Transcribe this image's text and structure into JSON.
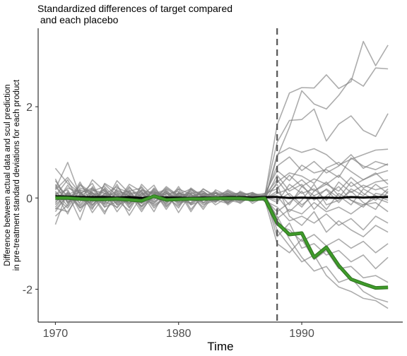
{
  "chart_data": {
    "type": "line",
    "title": "Standardized differences of target compared\n and each placebo",
    "xlabel": "Time",
    "ylabel_lines": [
      "Difference between actual data and scul prediction",
      "in pre-treatment standard deviations for each product"
    ],
    "xlim": [
      1968.6,
      1998.2
    ],
    "ylim": [
      -2.72,
      3.72
    ],
    "x_ticks": [
      1970,
      1980,
      1990
    ],
    "y_ticks": [
      -2,
      0,
      2
    ],
    "treatment_x": 1988,
    "grid": false,
    "placebo_color": "#7f7f7f",
    "target_color": "#3f9a2a",
    "mean_color": "#000000",
    "x": [
      1970,
      1971,
      1972,
      1973,
      1974,
      1975,
      1976,
      1977,
      1978,
      1979,
      1980,
      1981,
      1982,
      1983,
      1984,
      1985,
      1986,
      1987,
      1988,
      1989,
      1990,
      1991,
      1992,
      1993,
      1994,
      1995,
      1996,
      1997
    ],
    "target_series": {
      "values": [
        0.0,
        0.0,
        -0.02,
        -0.03,
        -0.03,
        -0.02,
        -0.04,
        -0.06,
        0.04,
        -0.04,
        -0.03,
        -0.02,
        -0.02,
        -0.01,
        -0.01,
        -0.01,
        -0.03,
        -0.01,
        -0.55,
        -0.8,
        -0.77,
        -1.3,
        -1.08,
        -1.48,
        -1.78,
        -1.88,
        -1.97,
        -1.96
      ]
    },
    "mean_series": {
      "values": [
        0.04,
        0.03,
        0.02,
        0.02,
        0.02,
        0.01,
        0.02,
        0.0,
        0.03,
        0.01,
        0.01,
        0.0,
        0.01,
        0.01,
        0.02,
        0.02,
        0.01,
        0.02,
        0.02,
        0.0,
        0.01,
        0.0,
        0.01,
        0.0,
        0.02,
        0.01,
        0.02,
        0.02
      ]
    },
    "placebo_series": [
      {
        "values": [
          0.65,
          0.32,
          0.1,
          0.22,
          -0.05,
          0.18,
          0.05,
          -0.12,
          0.08,
          0.15,
          -0.04,
          0.12,
          -0.02,
          0.05,
          0.1,
          -0.03,
          0.06,
          0.04,
          1.6,
          2.3,
          2.42,
          2.41,
          2.7,
          2.4,
          2.55,
          3.43,
          2.9,
          3.35
        ]
      },
      {
        "values": [
          -0.58,
          0.15,
          -0.22,
          0.05,
          0.18,
          -0.1,
          0.22,
          0.02,
          -0.08,
          0.1,
          -0.05,
          0.02,
          0.12,
          -0.04,
          0.03,
          0.08,
          -0.02,
          -0.05,
          0.9,
          1.55,
          2.35,
          2.06,
          1.95,
          2.25,
          2.62,
          2.45,
          2.85,
          2.83
        ]
      },
      {
        "values": [
          0.42,
          -0.12,
          0.35,
          -0.15,
          0.1,
          -0.05,
          -0.28,
          0.18,
          -0.02,
          0.22,
          0.05,
          -0.12,
          0.1,
          0.04,
          -0.06,
          0.12,
          0.03,
          0.05,
          1.22,
          1.7,
          1.72,
          1.95,
          1.25,
          1.62,
          1.8,
          1.48,
          1.35,
          1.85
        ]
      },
      {
        "values": [
          0.2,
          0.78,
          0.05,
          -0.25,
          0.32,
          0.15,
          -0.12,
          0.05,
          0.28,
          -0.18,
          0.08,
          0.2,
          -0.1,
          0.05,
          0.15,
          -0.03,
          0.08,
          -0.04,
          0.95,
          1.1,
          1.0,
          1.08,
          0.95,
          0.72,
          0.85,
          0.95,
          1.05,
          1.07
        ]
      },
      {
        "values": [
          -0.2,
          0.1,
          -0.48,
          0.25,
          -0.12,
          0.38,
          0.1,
          -0.3,
          0.12,
          0.05,
          -0.22,
          0.18,
          0.02,
          -0.08,
          0.12,
          0.05,
          -0.05,
          0.1,
          0.6,
          0.38,
          0.72,
          0.55,
          0.62,
          0.45,
          0.88,
          0.7,
          0.62,
          0.75
        ]
      },
      {
        "values": [
          0.1,
          -0.35,
          0.22,
          0.12,
          -0.2,
          -0.08,
          0.3,
          0.14,
          -0.18,
          0.02,
          0.2,
          -0.25,
          0.06,
          0.12,
          -0.1,
          0.02,
          0.12,
          -0.08,
          0.35,
          0.55,
          0.48,
          0.32,
          0.66,
          0.78,
          0.58,
          0.4,
          0.52,
          0.6
        ]
      },
      {
        "values": [
          0.3,
          0.05,
          -0.1,
          0.4,
          0.15,
          -0.3,
          0.05,
          -0.18,
          0.2,
          -0.1,
          0.1,
          0.05,
          -0.2,
          0.18,
          0.05,
          -0.12,
          0.06,
          0.1,
          0.2,
          0.5,
          0.25,
          0.42,
          0.3,
          0.15,
          0.45,
          0.22,
          0.35,
          0.4
        ]
      },
      {
        "values": [
          -0.05,
          0.22,
          0.12,
          -0.18,
          0.3,
          0.05,
          -0.15,
          0.25,
          -0.1,
          0.15,
          -0.32,
          0.1,
          0.15,
          -0.06,
          0.08,
          0.1,
          -0.12,
          0.03,
          -0.1,
          0.3,
          0.1,
          0.2,
          -0.05,
          0.35,
          0.12,
          0.28,
          0.18,
          0.25
        ]
      },
      {
        "values": [
          0.15,
          -0.18,
          0.28,
          0.05,
          -0.35,
          0.22,
          0.12,
          -0.05,
          0.15,
          -0.25,
          0.12,
          -0.05,
          0.2,
          0.05,
          -0.12,
          0.15,
          0.02,
          -0.02,
          0.15,
          -0.15,
          0.25,
          0.05,
          0.18,
          -0.1,
          0.2,
          0.05,
          0.3,
          0.1
        ]
      },
      {
        "values": [
          -0.3,
          0.08,
          0.18,
          -0.32,
          0.05,
          0.12,
          -0.22,
          0.3,
          0.02,
          -0.12,
          0.25,
          -0.15,
          0.05,
          0.1,
          -0.05,
          -0.1,
          0.1,
          0.05,
          0.4,
          0.05,
          -0.2,
          0.15,
          0.35,
          0.05,
          -0.15,
          0.2,
          0.05,
          -0.05
        ]
      },
      {
        "values": [
          0.05,
          0.4,
          -0.15,
          0.18,
          0.1,
          -0.22,
          0.08,
          0.12,
          -0.3,
          0.2,
          0.02,
          0.15,
          -0.12,
          -0.02,
          0.18,
          0.05,
          -0.06,
          -0.03,
          -0.3,
          -0.1,
          0.15,
          -0.25,
          0.05,
          0.25,
          -0.05,
          -0.2,
          0.1,
          0.05
        ]
      },
      {
        "values": [
          0.25,
          -0.08,
          0.05,
          0.2,
          -0.15,
          0.1,
          -0.38,
          0.05,
          0.1,
          0.18,
          -0.12,
          0.05,
          0.08,
          -0.15,
          0.02,
          0.12,
          0.05,
          0.02,
          0.05,
          -0.3,
          -0.05,
          0.3,
          -0.15,
          -0.05,
          0.15,
          -0.1,
          -0.25,
          0.15
        ]
      },
      {
        "values": [
          -0.12,
          0.28,
          -0.05,
          -0.1,
          0.22,
          -0.15,
          0.18,
          -0.25,
          0.05,
          0.08,
          0.15,
          -0.3,
          0.1,
          0.05,
          -0.08,
          0.04,
          -0.04,
          0.08,
          -0.45,
          -0.25,
          -0.35,
          -0.1,
          -0.3,
          -0.2,
          -0.35,
          -0.15,
          -0.1,
          -0.3
        ]
      },
      {
        "values": [
          0.38,
          0.0,
          0.15,
          -0.22,
          0.08,
          0.25,
          -0.05,
          -0.12,
          0.22,
          -0.05,
          0.05,
          0.1,
          -0.25,
          0.12,
          0.08,
          -0.05,
          0.08,
          -0.06,
          -0.2,
          -0.5,
          -0.4,
          -0.55,
          -0.35,
          -0.6,
          -0.45,
          -0.7,
          -0.4,
          -0.55
        ]
      },
      {
        "values": [
          -0.4,
          -0.15,
          0.3,
          0.1,
          -0.08,
          -0.2,
          0.15,
          0.22,
          -0.15,
          0.02,
          -0.18,
          0.2,
          0.05,
          -0.1,
          0.15,
          0.05,
          -0.08,
          0.04,
          0.3,
          -0.4,
          -0.6,
          -0.3,
          -0.75,
          -0.5,
          -0.7,
          -0.85,
          -0.6,
          -0.75
        ]
      },
      {
        "values": [
          0.08,
          0.18,
          -0.3,
          0.15,
          0.25,
          -0.05,
          -0.1,
          0.08,
          0.12,
          -0.2,
          0.1,
          0.02,
          0.15,
          -0.05,
          -0.12,
          0.08,
          0.1,
          -0.02,
          -0.6,
          -0.7,
          -0.95,
          -0.8,
          -1.05,
          -0.9,
          -1.1,
          -0.95,
          -1.2,
          -1.0
        ]
      },
      {
        "values": [
          -0.22,
          -0.3,
          0.08,
          0.32,
          -0.2,
          0.15,
          0.05,
          -0.18,
          0.05,
          0.12,
          -0.08,
          -0.1,
          0.2,
          0.02,
          0.05,
          -0.08,
          0.02,
          0.06,
          -0.85,
          -0.55,
          -1.1,
          -1.0,
          -1.25,
          -1.15,
          -1.4,
          -1.25,
          -1.55,
          -1.3
        ]
      },
      {
        "values": [
          0.18,
          0.45,
          0.1,
          -0.05,
          -0.12,
          0.3,
          -0.2,
          0.1,
          -0.05,
          0.25,
          0.05,
          -0.15,
          -0.05,
          0.1,
          0.05,
          0.12,
          -0.05,
          -0.04,
          -1.0,
          -1.2,
          -0.9,
          -1.35,
          -1.15,
          -1.55,
          -1.5,
          -1.75,
          -1.7,
          -1.85
        ]
      },
      {
        "values": [
          -0.15,
          0.1,
          -0.22,
          -0.05,
          0.15,
          -0.08,
          0.25,
          -0.1,
          0.18,
          -0.15,
          0.2,
          0.08,
          -0.15,
          -0.05,
          0.1,
          -0.02,
          0.05,
          0.0,
          -0.4,
          -0.9,
          -1.3,
          -1.6,
          -1.5,
          -1.85,
          -1.75,
          -2.05,
          -2.2,
          -2.28
        ]
      },
      {
        "values": [
          0.02,
          -0.22,
          0.18,
          0.08,
          -0.3,
          0.05,
          0.1,
          0.15,
          -0.22,
          0.05,
          -0.1,
          0.22,
          0.02,
          0.15,
          -0.15,
          0.05,
          0.12,
          0.0,
          -0.7,
          -1.05,
          -1.4,
          -1.25,
          -1.7,
          -1.95,
          -2.05,
          -2.2,
          -2.25,
          -2.42
        ]
      },
      {
        "values": [
          0.12,
          -0.05,
          0.08,
          -0.15,
          0.1,
          0.05,
          -0.12,
          0.18,
          0.1,
          -0.08,
          0.12,
          -0.05,
          0.05,
          0.02,
          -0.1,
          0.08,
          -0.02,
          0.05,
          0.7,
          0.9,
          0.6,
          0.8,
          0.55,
          0.7,
          0.95,
          0.65,
          0.8,
          0.72
        ]
      },
      {
        "values": [
          -0.08,
          0.12,
          -0.18,
          0.1,
          0.05,
          -0.12,
          0.08,
          -0.05,
          -0.12,
          0.1,
          -0.02,
          0.08,
          -0.1,
          0.05,
          0.08,
          -0.05,
          0.04,
          -0.02,
          0.1,
          0.2,
          0.4,
          0.15,
          0.3,
          0.5,
          0.25,
          0.4,
          0.55,
          0.3
        ]
      },
      {
        "values": [
          0.28,
          -0.1,
          0.02,
          0.12,
          -0.05,
          0.08,
          0.15,
          -0.2,
          0.05,
          0.12,
          -0.15,
          0.02,
          0.1,
          -0.08,
          0.05,
          0.02,
          -0.06,
          0.03,
          -0.05,
          0.1,
          -0.15,
          0.05,
          -0.25,
          0.1,
          -0.05,
          -0.15,
          0.0,
          -0.1
        ]
      },
      {
        "values": [
          -0.25,
          0.05,
          0.12,
          -0.08,
          0.2,
          -0.15,
          -0.05,
          0.1,
          0.15,
          -0.02,
          0.08,
          -0.12,
          0.05,
          0.1,
          -0.02,
          -0.06,
          0.08,
          -0.03,
          0.5,
          0.15,
          0.3,
          -0.05,
          0.2,
          0.0,
          0.35,
          0.1,
          -0.05,
          0.2
        ]
      }
    ]
  }
}
